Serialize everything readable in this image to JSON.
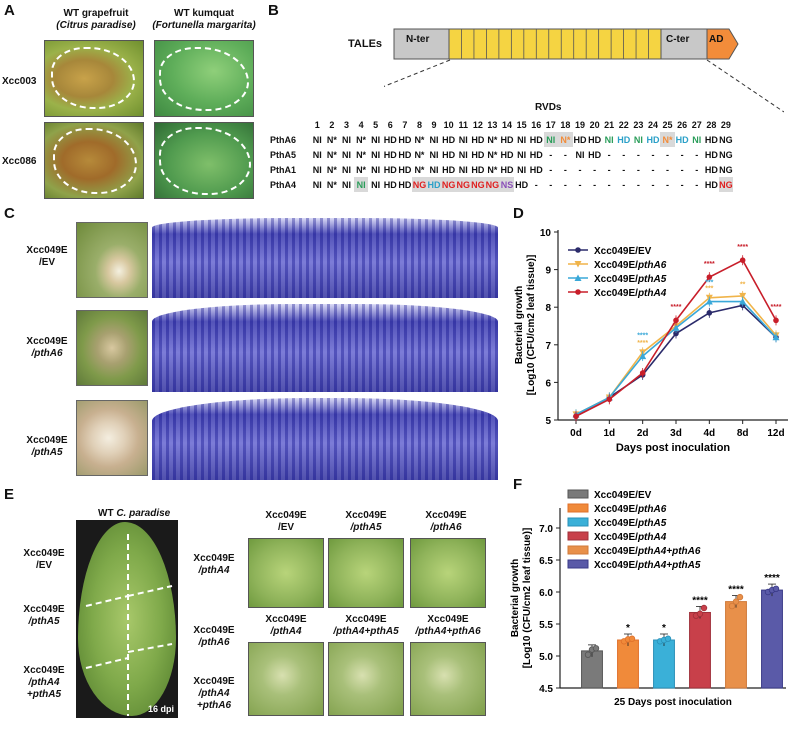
{
  "panel_letters": [
    "A",
    "B",
    "C",
    "D",
    "E",
    "F"
  ],
  "panelA": {
    "col1": {
      "line1": "WT grapefruit",
      "line2": "(Citrus paradise)"
    },
    "col2": {
      "line1": "WT kumquat",
      "line2": "(Fortunella margarita)"
    },
    "rows": [
      "Xcc003",
      "Xcc086"
    ]
  },
  "panelB": {
    "tales_label": "TALEs",
    "nter": "N-ter",
    "cter": "C-ter",
    "ad": "AD",
    "rvds_title": "RVDs",
    "positions": [
      "1",
      "2",
      "3",
      "4",
      "5",
      "6",
      "7",
      "8",
      "9",
      "10",
      "11",
      "12",
      "13",
      "14",
      "15",
      "16",
      "17",
      "18",
      "19",
      "20",
      "21",
      "22",
      "23",
      "24",
      "25",
      "26",
      "27",
      "28",
      "29"
    ],
    "rows": [
      {
        "name": "PthA6",
        "cells": [
          "NI",
          "N*",
          "NI",
          "N*",
          "NI",
          "HD",
          "HD",
          "N*",
          "NI",
          "HD",
          "NI",
          "HD",
          "N*",
          "HD",
          "NI",
          "HD",
          "NI",
          "N*",
          "HD",
          "HD",
          "NI",
          "HD",
          "NI",
          "HD",
          "N*",
          "HD",
          "NI",
          "HD",
          "NG"
        ]
      },
      {
        "name": "PthA5",
        "cells": [
          "NI",
          "N*",
          "NI",
          "N*",
          "NI",
          "HD",
          "HD",
          "N*",
          "NI",
          "HD",
          "NI",
          "HD",
          "N*",
          "HD",
          "NI",
          "HD",
          "-",
          "-",
          "NI",
          "HD",
          "-",
          "-",
          "-",
          "-",
          "-",
          "-",
          "-",
          "HD",
          "NG"
        ]
      },
      {
        "name": "PthA1",
        "cells": [
          "NI",
          "N*",
          "NI",
          "N*",
          "NI",
          "HD",
          "HD",
          "N*",
          "NI",
          "HD",
          "NI",
          "HD",
          "N*",
          "HD",
          "NI",
          "HD",
          "-",
          "-",
          "-",
          "-",
          "-",
          "-",
          "-",
          "-",
          "-",
          "-",
          "-",
          "HD",
          "NG"
        ]
      },
      {
        "name": "PthA4",
        "cells": [
          "NI",
          "N*",
          "NI",
          "NI",
          "NI",
          "HD",
          "HD",
          "NG",
          "HD",
          "NG",
          "NG",
          "NG",
          "NG",
          "NS",
          "HD",
          "-",
          "-",
          "-",
          "-",
          "-",
          "-",
          "-",
          "-",
          "-",
          "-",
          "-",
          "-",
          "HD",
          "NG"
        ]
      }
    ],
    "colors": {
      "green": "#2a9d5a",
      "cyan": "#2aa0c8",
      "red": "#e02020",
      "orange": "#f28c3a",
      "purple": "#8a4fb8",
      "repeat_fill": "#f5d442",
      "nter_fill": "#c8c8c8",
      "ad_fill": "#f28c3a"
    }
  },
  "panelC": {
    "rows": [
      {
        "l1": "Xcc049E",
        "l2": "/EV"
      },
      {
        "l1": "Xcc049E",
        "l2": "/pthA6"
      },
      {
        "l1": "Xcc049E",
        "l2": "/pthA5"
      }
    ]
  },
  "panelE": {
    "leaf_title_prefix": "WT ",
    "leaf_title_species": "C. paradise",
    "dpi": "16 dpi",
    "leaf_left_labels": [
      {
        "l1": "Xcc049E",
        "l2": "/EV"
      },
      {
        "l1": "Xcc049E",
        "l2": "/pthA5"
      },
      {
        "l1": "Xcc049E",
        "l2": "/pthA4",
        "l3": "+pthA5"
      }
    ],
    "leaf_right_labels": [
      {
        "l1": "Xcc049E",
        "l2": "/pthA4"
      },
      {
        "l1": "Xcc049E",
        "l2": "/pthA6"
      },
      {
        "l1": "Xcc049E",
        "l2": "/pthA4",
        "l3": "+pthA6"
      }
    ],
    "thumbs_row1": [
      {
        "l1": "Xcc049E",
        "l2": "/EV"
      },
      {
        "l1": "Xcc049E",
        "l2": "/pthA5"
      },
      {
        "l1": "Xcc049E",
        "l2": "/pthA6"
      }
    ],
    "thumbs_row2": [
      {
        "l1": "Xcc049E",
        "l2": "/pthA4"
      },
      {
        "l1": "Xcc049E",
        "l2": "/pthA4+pthA5"
      },
      {
        "l1": "Xcc049E",
        "l2": "/pthA4+pthA6"
      }
    ]
  },
  "chart_data": [
    {
      "type": "line",
      "panel": "D",
      "x": [
        "0d",
        "1d",
        "2d",
        "3d",
        "4d",
        "8d",
        "12d"
      ],
      "xlabel": "Days post inoculation",
      "ylabel_line1": "Bacterial growth",
      "ylabel_line2": "[Log10 (CFU/cm2 leaf tissue)]",
      "ylim": [
        5,
        10
      ],
      "yticks": [
        "5",
        "6",
        "7",
        "8",
        "9",
        "10"
      ],
      "series": [
        {
          "name": "Xcc049E/EV",
          "color": "#2b2b6b",
          "marker": "circle",
          "values": [
            5.1,
            5.6,
            6.2,
            7.3,
            7.85,
            8.05,
            7.2
          ]
        },
        {
          "name": "Xcc049E/pthA6",
          "color": "#f0b44a",
          "marker": "triangle-down",
          "values": [
            5.15,
            5.6,
            6.8,
            7.5,
            8.25,
            8.3,
            7.25
          ]
        },
        {
          "name": "Xcc049E/pthA5",
          "color": "#3aa8d8",
          "marker": "triangle-up",
          "values": [
            5.15,
            5.6,
            6.7,
            7.45,
            8.15,
            8.15,
            7.2
          ]
        },
        {
          "name": "Xcc049E/pthA4",
          "color": "#c81e2a",
          "marker": "circle",
          "values": [
            5.1,
            5.55,
            6.25,
            7.65,
            8.8,
            9.25,
            7.65
          ]
        }
      ],
      "annotations": [
        {
          "x": "2d",
          "y": 7.2,
          "text": "****",
          "color": "#3aa8d8"
        },
        {
          "x": "2d",
          "y": 7.0,
          "text": "****",
          "color": "#f0b44a"
        },
        {
          "x": "3d",
          "y": 7.95,
          "text": "****",
          "color": "#c81e2a"
        },
        {
          "x": "4d",
          "y": 9.1,
          "text": "****",
          "color": "#c81e2a"
        },
        {
          "x": "4d",
          "y": 8.6,
          "text": "***",
          "color": "#3aa8d8"
        },
        {
          "x": "4d",
          "y": 8.45,
          "text": "***",
          "color": "#f0b44a"
        },
        {
          "x": "8d",
          "y": 9.55,
          "text": "****",
          "color": "#c81e2a"
        },
        {
          "x": "8d",
          "y": 8.55,
          "text": "**",
          "color": "#f0b44a"
        },
        {
          "x": "12d",
          "y": 7.95,
          "text": "****",
          "color": "#c81e2a"
        }
      ]
    },
    {
      "type": "bar",
      "panel": "F",
      "categories": [
        "Xcc049E/EV",
        "Xcc049E/pthA6",
        "Xcc049E/pthA5",
        "Xcc049E/pthA4",
        "Xcc049E/pthA4+pthA6",
        "Xcc049E/pthA4+pthA5"
      ],
      "values": [
        5.08,
        5.25,
        5.25,
        5.68,
        5.85,
        6.03
      ],
      "points": [
        [
          5.02,
          5.1,
          5.12
        ],
        [
          5.23,
          5.26,
          5.27
        ],
        [
          5.23,
          5.25,
          5.27
        ],
        [
          5.63,
          5.66,
          5.75
        ],
        [
          5.78,
          5.85,
          5.92
        ],
        [
          6.0,
          6.03,
          6.05
        ]
      ],
      "significance": [
        "",
        "*",
        "*",
        "****",
        "****",
        "****"
      ],
      "colors": [
        "#7a7a7a",
        "#f08a3a",
        "#3ab0d8",
        "#c8404a",
        "#e8904a",
        "#5a5aa8"
      ],
      "edge_colors": [
        "#555555",
        "#e0702a",
        "#2a90b8",
        "#a0303a",
        "#d07a3a",
        "#3a3a88"
      ],
      "xlabel": "25 Days post inoculation",
      "ylabel_line1": "Bacterial growth",
      "ylabel_line2": "[Log10 (CFU/cm2 leaf tissue)]",
      "ylim": [
        4.5,
        7.0
      ],
      "yticks": [
        "4.5",
        "5.0",
        "5.5",
        "6.0",
        "6.5",
        "7.0"
      ],
      "legend": "top-left"
    }
  ]
}
